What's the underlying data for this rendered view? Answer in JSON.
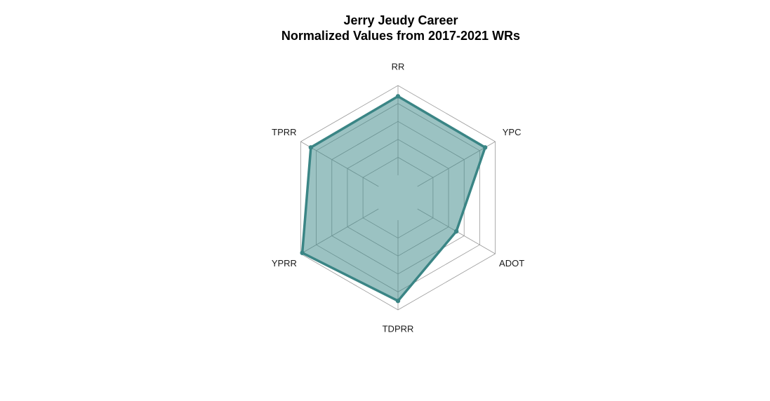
{
  "chart_data": {
    "type": "radar",
    "title": "Jerry Jeudy Career",
    "subtitle": "Normalized Values from 2017-2021 WRs",
    "axes": [
      "RR",
      "YPC",
      "ADOT",
      "TDPRR",
      "YPRR",
      "TPRR"
    ],
    "values": [
      0.88,
      0.87,
      0.5,
      0.9,
      0.98,
      0.87
    ],
    "range": [
      0,
      1
    ],
    "grid_levels": 5,
    "grid": true,
    "legend": "none",
    "colors": {
      "fill": "#3f8a8a",
      "stroke": "#3a8585",
      "grid": "#9a9a9a"
    }
  }
}
